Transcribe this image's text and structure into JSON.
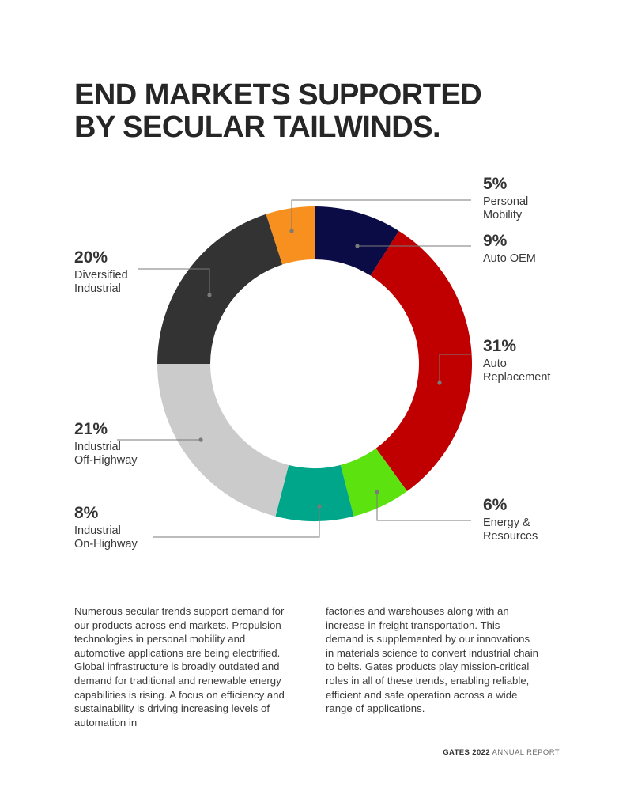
{
  "title": {
    "line1": "END MARKETS SUPPORTED",
    "line2": "BY SECULAR TAILWINDS."
  },
  "chart_data": {
    "type": "pie",
    "donut": true,
    "unit": "%",
    "segments": [
      {
        "value": 9,
        "label": "9%",
        "name_lines": [
          "Auto OEM"
        ],
        "color": "#0b0c45"
      },
      {
        "value": 31,
        "label": "31%",
        "name_lines": [
          "Auto",
          "Replacement"
        ],
        "color": "#c00000"
      },
      {
        "value": 6,
        "label": "6%",
        "name_lines": [
          "Energy &",
          "Resources"
        ],
        "color": "#5ce30f"
      },
      {
        "value": 8,
        "label": "8%",
        "name_lines": [
          "Industrial",
          "On-Highway"
        ],
        "color": "#00a68a"
      },
      {
        "value": 21,
        "label": "21%",
        "name_lines": [
          "Industrial",
          "Off-Highway"
        ],
        "color": "#cbcbcb"
      },
      {
        "value": 20,
        "label": "20%",
        "name_lines": [
          "Diversified",
          "Industrial"
        ],
        "color": "#333333"
      },
      {
        "value": 5,
        "label": "5%",
        "name_lines": [
          "Personal",
          "Mobility"
        ],
        "color": "#f7901e"
      }
    ]
  },
  "body": {
    "col1": "Numerous secular trends support demand for our products across end markets. Propulsion technologies in personal mobility and automotive applications are being electrified. Global infrastructure is broadly outdated and demand for traditional and renewable energy capabilities is rising. A focus on efficiency and sustainability is driving increasing levels of automation in",
    "col2": "factories and warehouses along with an increase in freight transportation. This demand is supplemented by our innovations in materials science to convert industrial chain to belts. Gates products play mission-critical roles in all of these trends, enabling reliable, efficient and safe operation across a wide range of applications."
  },
  "footer": {
    "brand": "GATES 2022",
    "report": "ANNUAL REPORT"
  }
}
